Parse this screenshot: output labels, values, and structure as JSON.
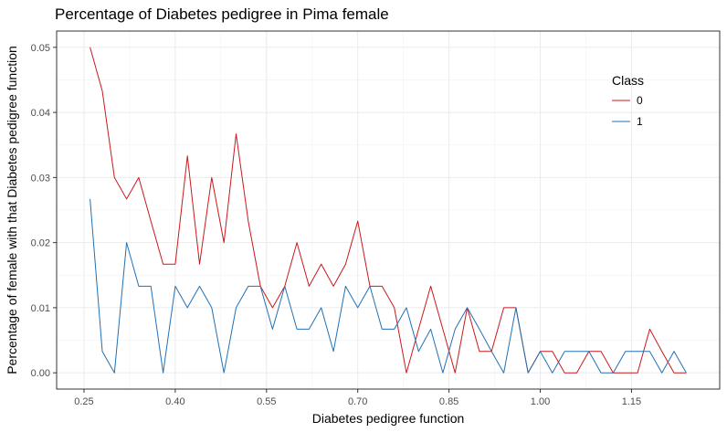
{
  "chart_data": {
    "type": "line",
    "title": "Percentage of Diabetes pedigree in Pima female",
    "xlabel": "Diabetes pedigree function",
    "ylabel": "Percentage of female with that Diabetes pedigree function",
    "xlim": [
      0.205,
      1.295
    ],
    "ylim": [
      -0.0025,
      0.0525
    ],
    "x_ticks": [
      "0.25",
      "0.40",
      "0.55",
      "0.70",
      "0.85",
      "1.00",
      "1.15"
    ],
    "y_ticks": [
      "0.00",
      "0.01",
      "0.02",
      "0.03",
      "0.04",
      "0.05"
    ],
    "x": [
      0.26,
      0.28,
      0.3,
      0.32,
      0.34,
      0.36,
      0.38,
      0.4,
      0.42,
      0.44,
      0.46,
      0.48,
      0.5,
      0.52,
      0.54,
      0.56,
      0.58,
      0.6,
      0.62,
      0.64,
      0.66,
      0.68,
      0.7,
      0.72,
      0.74,
      0.76,
      0.78,
      0.8,
      0.82,
      0.84,
      0.86,
      0.88,
      0.9,
      0.92,
      0.94,
      0.96,
      0.98,
      1.0,
      1.02,
      1.04,
      1.06,
      1.08,
      1.1,
      1.12,
      1.14,
      1.16,
      1.18,
      1.2,
      1.22,
      1.24
    ],
    "series": [
      {
        "name": "0",
        "color": "#cb181d",
        "values": [
          0.05,
          0.0433,
          0.03,
          0.0267,
          0.03,
          0.0233,
          0.0167,
          0.0167,
          0.0333,
          0.0167,
          0.03,
          0.02,
          0.0367,
          0.0233,
          0.0133,
          0.01,
          0.0133,
          0.02,
          0.0133,
          0.0167,
          0.0133,
          0.0167,
          0.0233,
          0.0133,
          0.0133,
          0.01,
          0.0,
          0.0067,
          0.0133,
          0.0067,
          0.0,
          0.01,
          0.0033,
          0.0033,
          0.01,
          0.01,
          0.0,
          0.0033,
          0.0033,
          0.0,
          0.0,
          0.0033,
          0.0033,
          0.0,
          0.0,
          0.0,
          0.0067,
          0.0033,
          0.0,
          0.0
        ]
      },
      {
        "name": "1",
        "color": "#2171b5",
        "values": [
          0.0267,
          0.0033,
          0.0,
          0.02,
          0.0133,
          0.0133,
          0.0,
          0.0133,
          0.01,
          0.0133,
          0.01,
          0.0,
          0.01,
          0.0133,
          0.0133,
          0.0067,
          0.0133,
          0.0067,
          0.0067,
          0.01,
          0.0033,
          0.0133,
          0.01,
          0.0133,
          0.0067,
          0.0067,
          0.01,
          0.0033,
          0.0067,
          0.0,
          0.0067,
          0.01,
          0.0067,
          0.0033,
          0.0,
          0.01,
          0.0,
          0.0033,
          0.0,
          0.0033,
          0.0033,
          0.0033,
          0.0,
          0.0,
          0.0033,
          0.0033,
          0.0033,
          0.0,
          0.0033,
          0.0
        ]
      }
    ],
    "legend": {
      "title": "Class",
      "position": "top-right",
      "items": [
        "0",
        "1"
      ]
    },
    "grid": true
  }
}
